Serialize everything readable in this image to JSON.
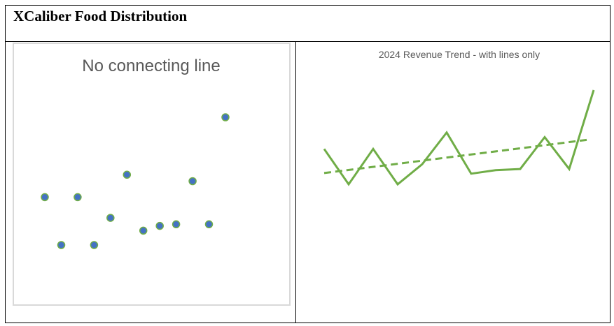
{
  "header": {
    "title": "XCaliber Food Distribution"
  },
  "colors": {
    "marker_fill": "#4472c4",
    "marker_stroke": "#70ad47",
    "line": "#70ad47"
  },
  "chart_data": [
    {
      "type": "scatter",
      "title": "No connecting line",
      "values": [
        120,
        90,
        120,
        90,
        107,
        134,
        99,
        102,
        103,
        130,
        103,
        170
      ],
      "grid": false,
      "legend": "none"
    },
    {
      "type": "line",
      "title": "2024 Revenue Trend - with lines only",
      "values": [
        120,
        90,
        120,
        90,
        107,
        134,
        99,
        102,
        103,
        130,
        103,
        170
      ],
      "trendline": "linear (dashed)",
      "grid": false,
      "legend": "none"
    }
  ]
}
